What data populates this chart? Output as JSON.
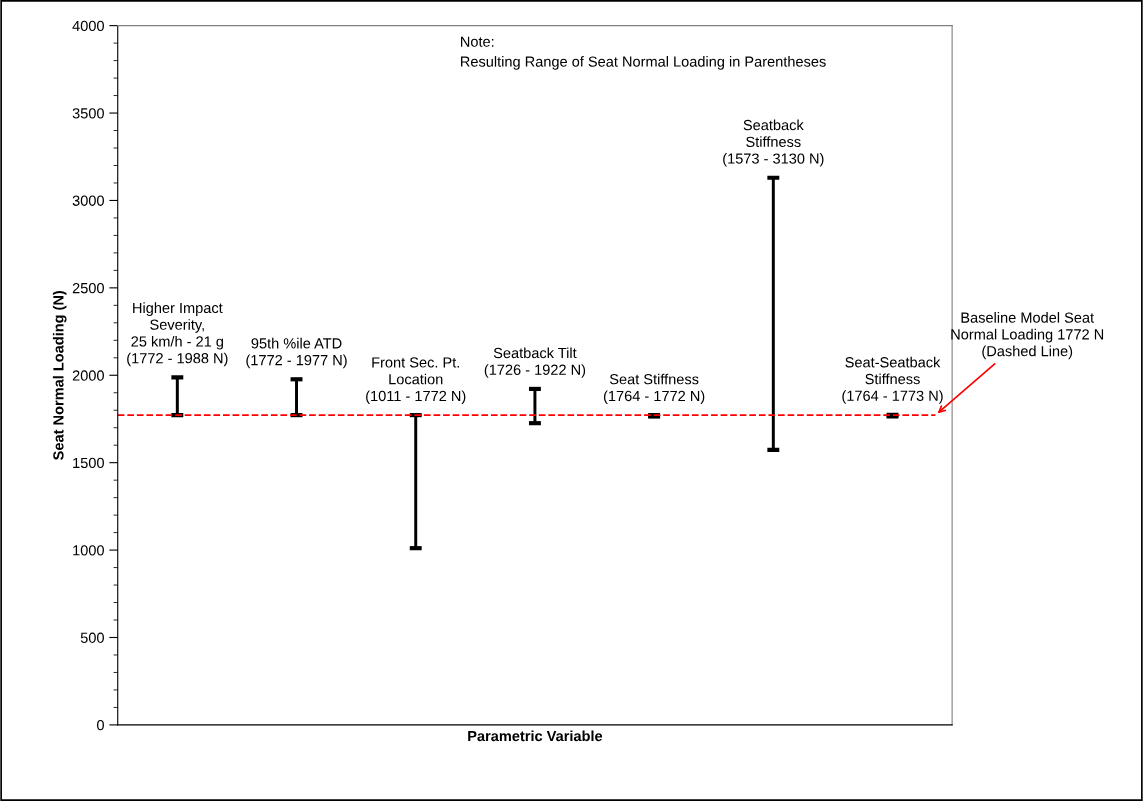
{
  "chart_data": {
    "type": "bar",
    "xlabel": "Parametric Variable",
    "ylabel": "Seat Normal Loading (N)",
    "categories": [
      "Higher Impact\nSeverity,\n25 km/h - 21 g",
      "95th %ile ATD",
      "Front Sec. Pt.\nLocation",
      "Seatback Tilt",
      "Seat Stiffness",
      "Seatback\nStiffness",
      "Seat-Seatback\nStiffness"
    ],
    "base": [
      1772,
      1772,
      1011,
      1726,
      1764,
      1573,
      1764
    ],
    "values": [
      216,
      205,
      761,
      196,
      8,
      1557,
      9
    ],
    "value_labels": [
      "(1772 - 1988 N)",
      "(1772 - 1977 N)",
      "(1011 - 1772 N)",
      "(1726 - 1922 N)",
      "(1764 - 1772 N)",
      "(1573 - 3130 N)",
      "(1764 - 1773 N)"
    ],
    "color": "#000000",
    "ylim": [
      0,
      4000
    ],
    "yticks": [
      0,
      500,
      1000,
      1500,
      2000,
      2500,
      3000,
      3500,
      4000
    ],
    "ref_lines": [
      {
        "axis": "y",
        "value": 1772,
        "label": "Baseline Model Seat\nNormal Loading 1772 N\n(Dashed Line)",
        "color": "#ff0000",
        "line_style": "dashed"
      }
    ],
    "annotations": [
      "Note:\nResulting Range of Seat Normal Loading in Parentheses"
    ],
    "grid": false,
    "legend": false
  }
}
